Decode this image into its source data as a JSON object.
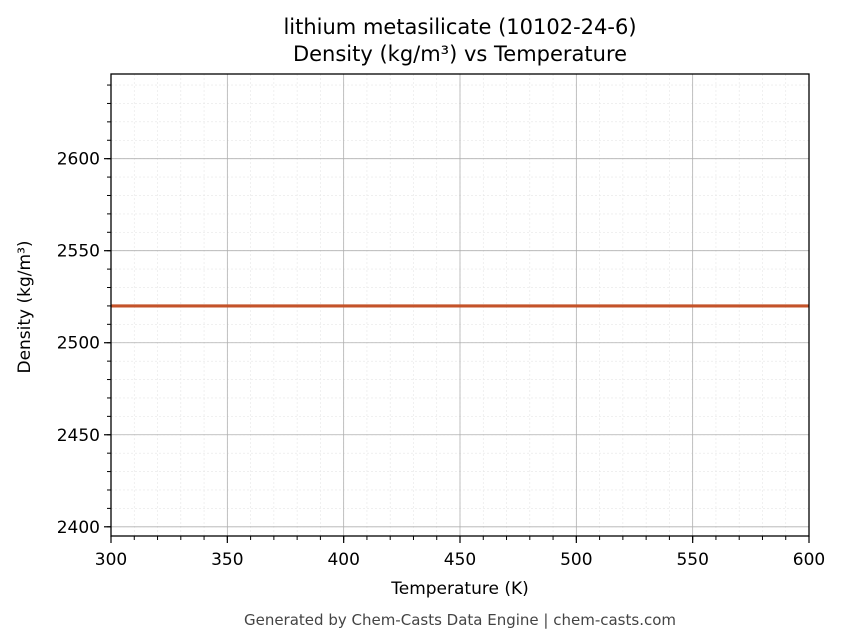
{
  "chart_data": {
    "type": "line",
    "title": "lithium metasilicate (10102-24-6)",
    "subtitle": "Density (kg/m³) vs Temperature",
    "xlabel": "Temperature (K)",
    "ylabel": "Density (kg/m³)",
    "xlim": [
      300,
      600
    ],
    "ylim": [
      2395,
      2646
    ],
    "xticks": [
      300,
      350,
      400,
      450,
      500,
      550,
      600
    ],
    "yticks": [
      2400,
      2450,
      2500,
      2550,
      2600
    ],
    "grid": true,
    "series": [
      {
        "color": "#c4532a",
        "x": [
          300,
          600
        ],
        "y": [
          2520,
          2520
        ]
      }
    ]
  },
  "footer": "Generated by Chem-Casts Data Engine | chem-casts.com"
}
